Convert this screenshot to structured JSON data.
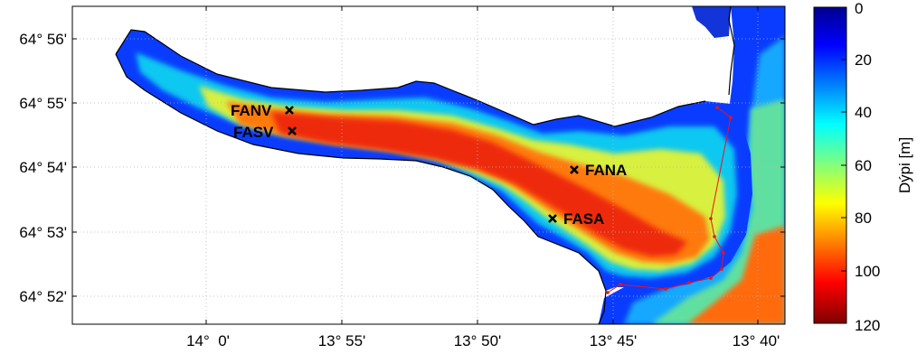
{
  "map": {
    "colorbar": {
      "label": "Dýpi [m]",
      "ticks": [
        "0",
        "20",
        "40",
        "60",
        "80",
        "100",
        "120"
      ],
      "range": [
        0,
        120
      ],
      "colormap": "jet",
      "colormap_stops": [
        "#00008f",
        "#0000ff",
        "#00ffff",
        "#ffff00",
        "#ff0000",
        "#800000"
      ]
    },
    "y_ticks": [
      "64° 56'",
      "64° 55'",
      "64° 54'",
      "64° 53'",
      "64° 52'"
    ],
    "x_ticks": [
      "14°  0'",
      "13° 55'",
      "13° 50'",
      "13° 45'",
      "13° 40'"
    ],
    "stations": [
      {
        "name": "FANV",
        "marker": "cross"
      },
      {
        "name": "FASV",
        "marker": "cross"
      },
      {
        "name": "FANA",
        "marker": "cross"
      },
      {
        "name": "FASA",
        "marker": "cross"
      }
    ],
    "track_color": "#e8141e",
    "coastline_color": "#000000",
    "grid": true
  }
}
